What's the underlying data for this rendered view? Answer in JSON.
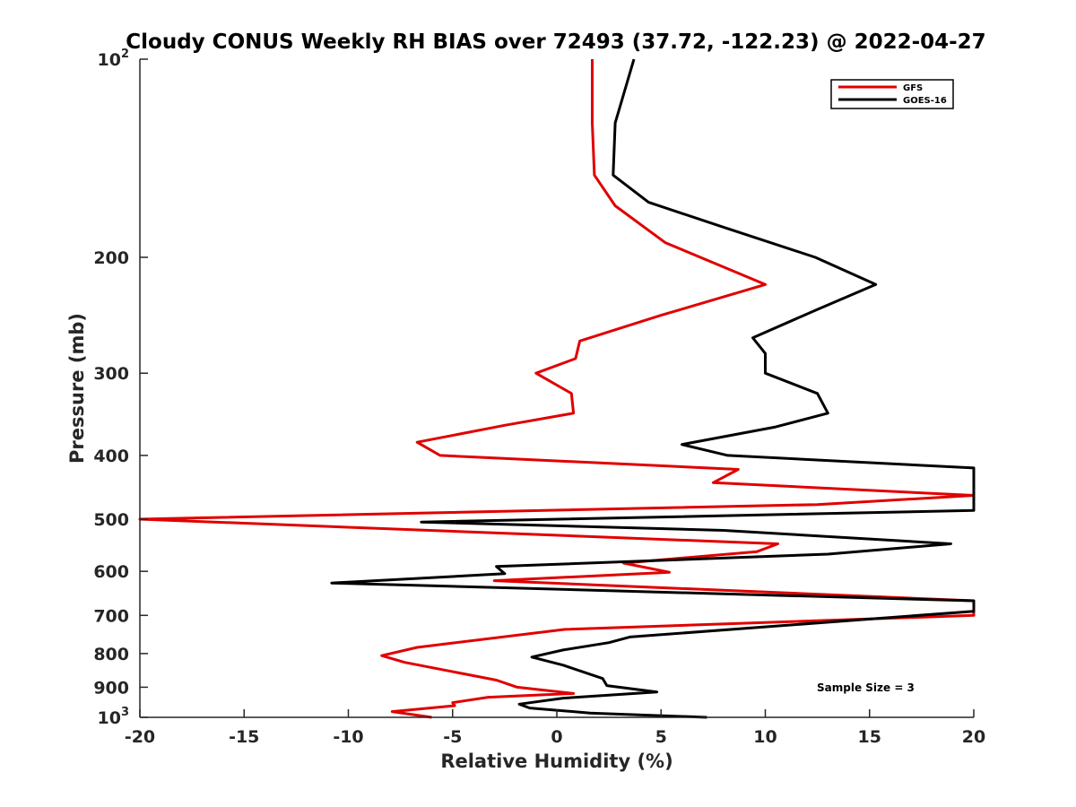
{
  "chart_data": {
    "type": "line",
    "title": "Cloudy CONUS Weekly RH BIAS over 72493 (37.72, -122.23) @ 2022-04-27",
    "xlabel": "Relative Humidity (%)",
    "ylabel": "Pressure (mb)",
    "xlim": [
      -20,
      20
    ],
    "ylim": [
      100,
      1000
    ],
    "y_scale": "log",
    "y_reversed": true,
    "grid": false,
    "legend_position": "top-right",
    "x_ticks": [
      {
        "value": -20,
        "label": "-20"
      },
      {
        "value": -15,
        "label": "-15"
      },
      {
        "value": -10,
        "label": "-10"
      },
      {
        "value": -5,
        "label": "-5"
      },
      {
        "value": 0,
        "label": "0"
      },
      {
        "value": 5,
        "label": "5"
      },
      {
        "value": 10,
        "label": "10"
      },
      {
        "value": 15,
        "label": "15"
      },
      {
        "value": 20,
        "label": "20"
      }
    ],
    "y_ticks": [
      {
        "value": 100,
        "label": "",
        "base": "10",
        "exp": "2"
      },
      {
        "value": 200,
        "label": "200"
      },
      {
        "value": 300,
        "label": "300"
      },
      {
        "value": 400,
        "label": "400"
      },
      {
        "value": 500,
        "label": "500"
      },
      {
        "value": 600,
        "label": "600"
      },
      {
        "value": 700,
        "label": "700"
      },
      {
        "value": 800,
        "label": "800"
      },
      {
        "value": 900,
        "label": "900"
      },
      {
        "value": 1000,
        "label": "",
        "base": "10",
        "exp": "3"
      }
    ],
    "series": [
      {
        "name": "GFS",
        "color": "#e00000",
        "points": [
          {
            "x": 1.7,
            "p": 100
          },
          {
            "x": 1.7,
            "p": 125
          },
          {
            "x": 1.8,
            "p": 150
          },
          {
            "x": 2.8,
            "p": 167
          },
          {
            "x": 5.2,
            "p": 190
          },
          {
            "x": 10.0,
            "p": 220
          },
          {
            "x": 5.0,
            "p": 245
          },
          {
            "x": 1.1,
            "p": 268
          },
          {
            "x": 0.9,
            "p": 285
          },
          {
            "x": -1.0,
            "p": 300
          },
          {
            "x": 0.7,
            "p": 322
          },
          {
            "x": 0.8,
            "p": 345
          },
          {
            "x": -2.5,
            "p": 360
          },
          {
            "x": -6.7,
            "p": 382
          },
          {
            "x": -5.6,
            "p": 400
          },
          {
            "x": 8.7,
            "p": 420
          },
          {
            "x": 7.5,
            "p": 440
          },
          {
            "x": 20,
            "p": 460
          },
          {
            "x": 12.5,
            "p": 475
          },
          {
            "x": -20,
            "p": 500
          },
          {
            "x": 10.6,
            "p": 545
          },
          {
            "x": 9.6,
            "p": 560
          },
          {
            "x": 3.2,
            "p": 583
          },
          {
            "x": 5.4,
            "p": 602
          },
          {
            "x": -3.0,
            "p": 620
          },
          {
            "x": 20,
            "p": 665
          },
          {
            "x": 20,
            "p": 700
          },
          {
            "x": 0.4,
            "p": 735
          },
          {
            "x": -6.7,
            "p": 783
          },
          {
            "x": -8.4,
            "p": 806
          },
          {
            "x": -7.3,
            "p": 825
          },
          {
            "x": -2.9,
            "p": 878
          },
          {
            "x": -1.9,
            "p": 900
          },
          {
            "x": 0.8,
            "p": 920
          },
          {
            "x": -3.3,
            "p": 932
          },
          {
            "x": -5.0,
            "p": 950
          },
          {
            "x": -4.9,
            "p": 960
          },
          {
            "x": -7.9,
            "p": 980
          },
          {
            "x": -6.0,
            "p": 1000
          }
        ]
      },
      {
        "name": "GOES-16",
        "color": "#000000",
        "points": [
          {
            "x": 3.7,
            "p": 100
          },
          {
            "x": 2.8,
            "p": 125
          },
          {
            "x": 2.7,
            "p": 150
          },
          {
            "x": 4.4,
            "p": 165
          },
          {
            "x": 8.0,
            "p": 180
          },
          {
            "x": 12.4,
            "p": 200
          },
          {
            "x": 15.3,
            "p": 220
          },
          {
            "x": 12.5,
            "p": 240
          },
          {
            "x": 9.4,
            "p": 265
          },
          {
            "x": 10.0,
            "p": 280
          },
          {
            "x": 10.0,
            "p": 300
          },
          {
            "x": 12.5,
            "p": 322
          },
          {
            "x": 13.0,
            "p": 345
          },
          {
            "x": 10.5,
            "p": 362
          },
          {
            "x": 6.0,
            "p": 385
          },
          {
            "x": 8.2,
            "p": 400
          },
          {
            "x": 20,
            "p": 418
          },
          {
            "x": 20,
            "p": 485
          },
          {
            "x": -6.5,
            "p": 505
          },
          {
            "x": 8.0,
            "p": 520
          },
          {
            "x": 18.9,
            "p": 545
          },
          {
            "x": 13.0,
            "p": 565
          },
          {
            "x": -2.9,
            "p": 590
          },
          {
            "x": -2.5,
            "p": 605
          },
          {
            "x": -10.8,
            "p": 625
          },
          {
            "x": 20,
            "p": 665
          },
          {
            "x": 20,
            "p": 690
          },
          {
            "x": 3.5,
            "p": 755
          },
          {
            "x": 2.5,
            "p": 770
          },
          {
            "x": 0.3,
            "p": 790
          },
          {
            "x": -1.2,
            "p": 810
          },
          {
            "x": 0.3,
            "p": 833
          },
          {
            "x": 2.2,
            "p": 873
          },
          {
            "x": 2.4,
            "p": 895
          },
          {
            "x": 4.8,
            "p": 915
          },
          {
            "x": 0.3,
            "p": 935
          },
          {
            "x": -1.8,
            "p": 955
          },
          {
            "x": -1.3,
            "p": 968
          },
          {
            "x": 1.6,
            "p": 985
          },
          {
            "x": 7.2,
            "p": 1000
          }
        ]
      }
    ],
    "annotation": "Sample Size = 3"
  }
}
